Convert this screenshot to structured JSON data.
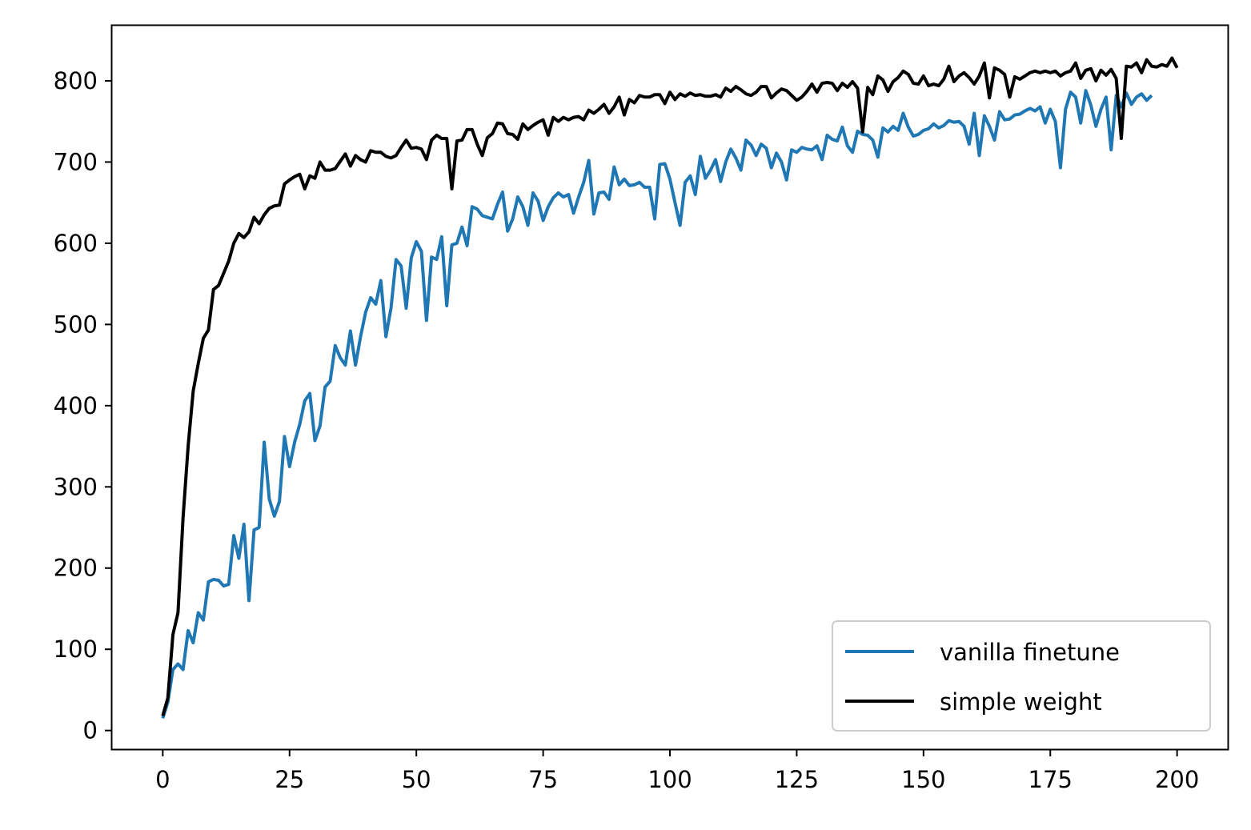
{
  "chart_data": {
    "type": "line",
    "title": "",
    "xlabel": "",
    "ylabel": "",
    "xlim": [
      -10,
      210
    ],
    "ylim": [
      -23,
      868
    ],
    "x_ticks": [
      0,
      25,
      50,
      75,
      100,
      125,
      150,
      175,
      200
    ],
    "y_ticks": [
      0,
      100,
      200,
      300,
      400,
      500,
      600,
      700,
      800
    ],
    "grid": false,
    "legend_position": "lower-right",
    "series": [
      {
        "name": "vanilla finetune",
        "color": "#1f77b4",
        "x_start": 0,
        "values": [
          15,
          35,
          75,
          82,
          75,
          123,
          108,
          145,
          136,
          183,
          186,
          185,
          178,
          180,
          240,
          212,
          254,
          160,
          247,
          250,
          355,
          285,
          264,
          282,
          362,
          325,
          355,
          377,
          406,
          415,
          357,
          375,
          423,
          430,
          474,
          459,
          450,
          492,
          450,
          485,
          515,
          533,
          525,
          554,
          485,
          520,
          580,
          572,
          520,
          582,
          602,
          590,
          505,
          583,
          580,
          608,
          523,
          598,
          600,
          620,
          597,
          645,
          642,
          634,
          632,
          630,
          648,
          663,
          615,
          630,
          657,
          645,
          622,
          662,
          652,
          628,
          645,
          656,
          662,
          657,
          660,
          637,
          657,
          675,
          702,
          636,
          662,
          663,
          654,
          694,
          672,
          679,
          671,
          672,
          675,
          669,
          669,
          630,
          697,
          698,
          679,
          650,
          622,
          675,
          683,
          660,
          707,
          680,
          690,
          703,
          676,
          700,
          716,
          705,
          690,
          727,
          721,
          708,
          722,
          717,
          693,
          711,
          700,
          678,
          715,
          712,
          718,
          716,
          715,
          720,
          703,
          733,
          728,
          726,
          743,
          720,
          712,
          738,
          734,
          733,
          727,
          706,
          742,
          737,
          744,
          739,
          760,
          743,
          732,
          734,
          739,
          741,
          747,
          742,
          745,
          751,
          749,
          750,
          744,
          722,
          760,
          708,
          757,
          744,
          727,
          762,
          752,
          753,
          758,
          759,
          763,
          766,
          763,
          768,
          748,
          765,
          750,
          693,
          765,
          786,
          780,
          748,
          788,
          770,
          744,
          765,
          780,
          715,
          782,
          768,
          785,
          771,
          780,
          784,
          776,
          782
        ]
      },
      {
        "name": "simple weight",
        "color": "#000000",
        "x_start": 0,
        "values": [
          18,
          40,
          118,
          145,
          262,
          350,
          418,
          452,
          483,
          493,
          543,
          548,
          563,
          578,
          600,
          612,
          607,
          614,
          632,
          624,
          635,
          643,
          646,
          647,
          673,
          678,
          682,
          685,
          667,
          683,
          680,
          700,
          690,
          690,
          692,
          701,
          710,
          695,
          708,
          703,
          700,
          714,
          712,
          712,
          707,
          705,
          708,
          718,
          727,
          717,
          718,
          716,
          703,
          727,
          733,
          729,
          729,
          667,
          726,
          727,
          740,
          740,
          722,
          708,
          730,
          735,
          748,
          747,
          735,
          734,
          728,
          747,
          740,
          745,
          749,
          752,
          733,
          755,
          750,
          755,
          752,
          755,
          756,
          752,
          764,
          760,
          765,
          771,
          760,
          768,
          780,
          758,
          777,
          773,
          782,
          780,
          780,
          783,
          783,
          772,
          786,
          777,
          784,
          781,
          785,
          782,
          783,
          781,
          781,
          783,
          780,
          791,
          787,
          793,
          789,
          784,
          782,
          786,
          793,
          793,
          779,
          785,
          790,
          788,
          782,
          776,
          780,
          787,
          796,
          786,
          797,
          798,
          797,
          788,
          797,
          792,
          799,
          791,
          737,
          792,
          783,
          806,
          801,
          787,
          799,
          804,
          812,
          808,
          797,
          796,
          806,
          794,
          796,
          794,
          802,
          818,
          799,
          806,
          810,
          804,
          796,
          806,
          822,
          779,
          816,
          813,
          808,
          780,
          805,
          802,
          806,
          810,
          812,
          810,
          812,
          810,
          812,
          806,
          810,
          812,
          822,
          803,
          813,
          815,
          800,
          813,
          807,
          814,
          803,
          729,
          818,
          817,
          822,
          810,
          826,
          818,
          817,
          820,
          818,
          828,
          816
        ]
      }
    ]
  }
}
